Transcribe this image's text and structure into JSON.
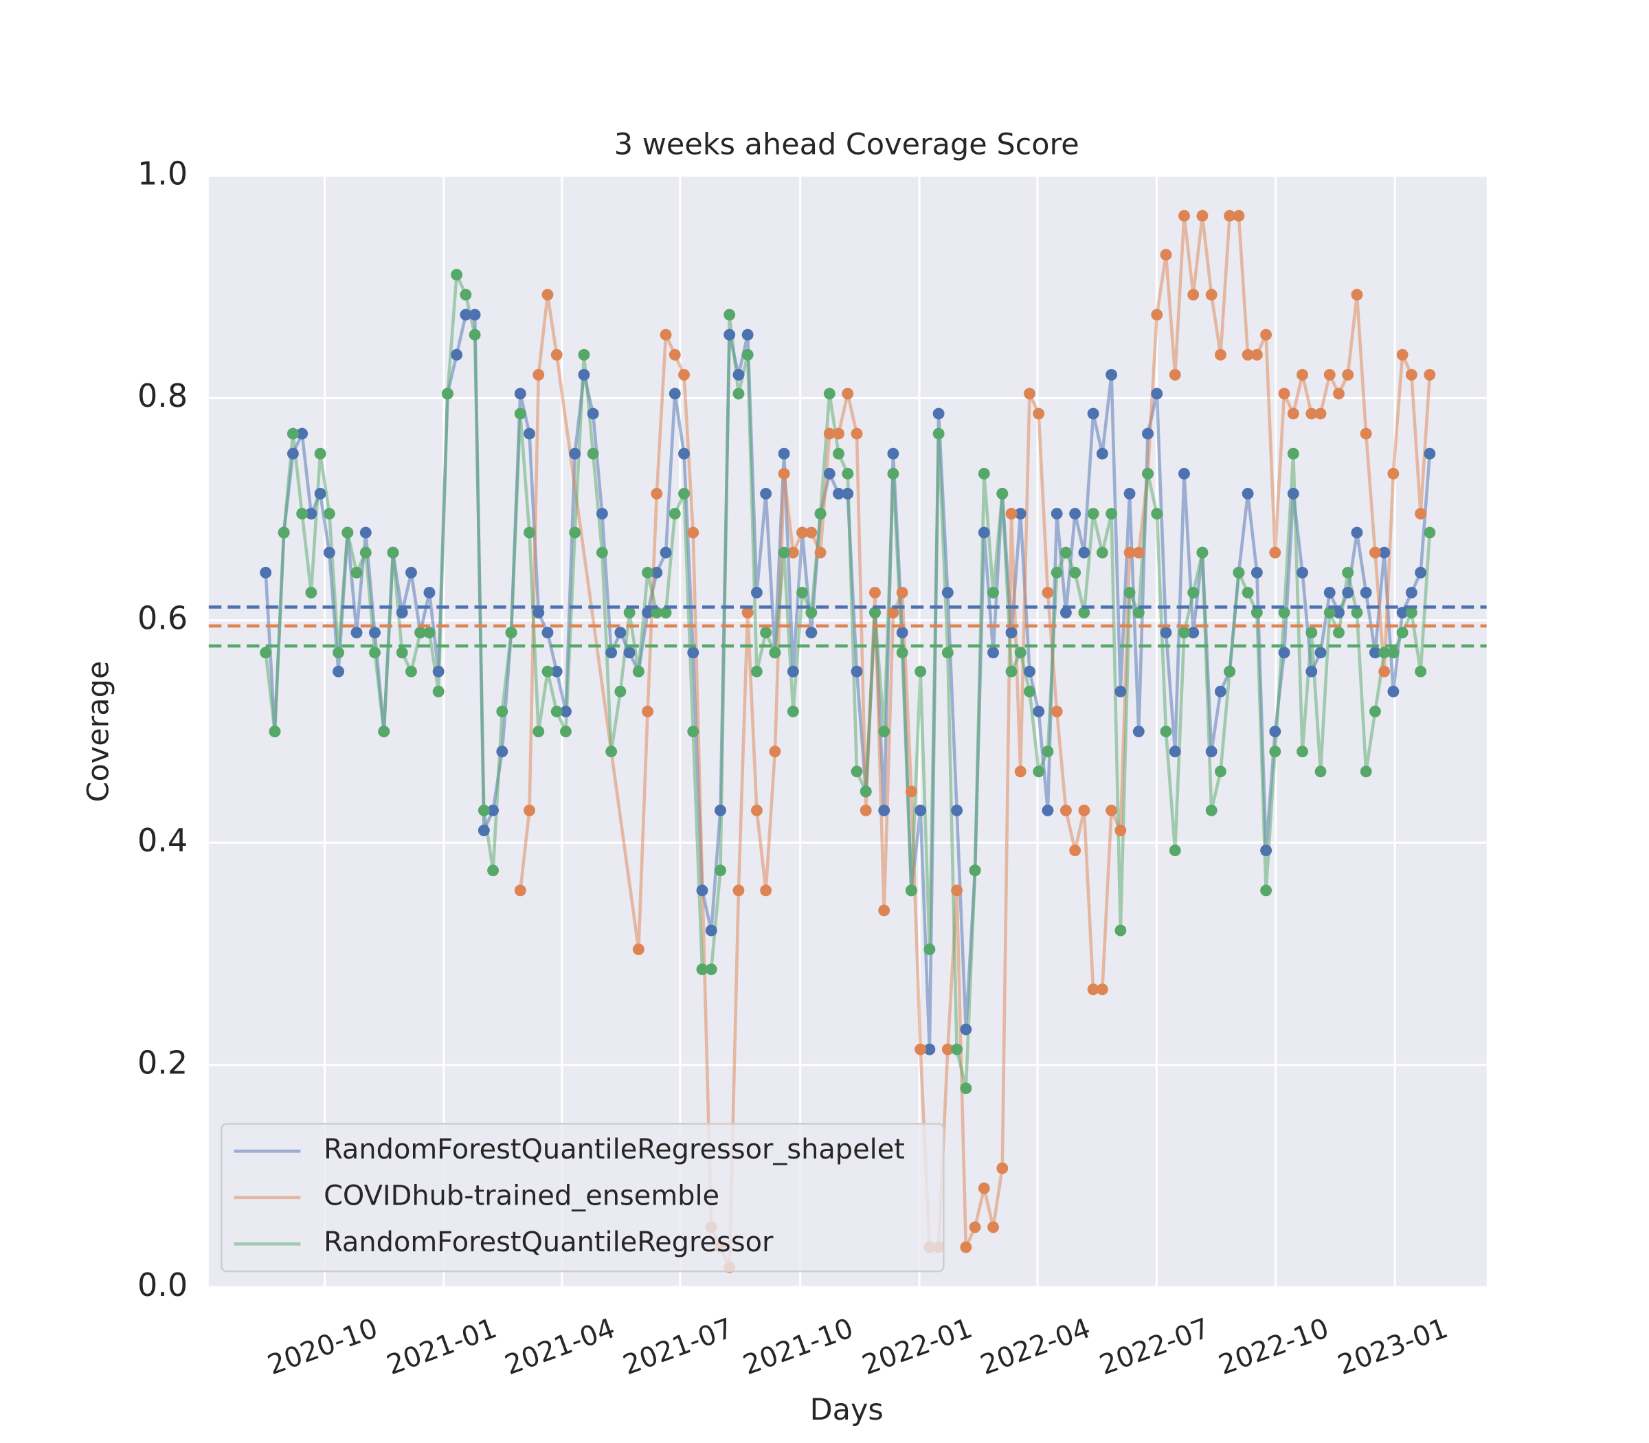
{
  "chart_data": {
    "type": "line",
    "title": "3 weeks ahead Coverage Score",
    "xlabel": "Days",
    "ylabel": "Coverage",
    "x": [
      0,
      1,
      2,
      3,
      4,
      5,
      6,
      7,
      8,
      9,
      10,
      11,
      12,
      13,
      14,
      15,
      16,
      17,
      18,
      19,
      20,
      21,
      22,
      23,
      24,
      25,
      26,
      27,
      28,
      29,
      30,
      31,
      32,
      33,
      34,
      35,
      36,
      37,
      38,
      39,
      40,
      41,
      42,
      43,
      44,
      45,
      46,
      47,
      48,
      49,
      50,
      51,
      52,
      53,
      54,
      55,
      56,
      57,
      58,
      59,
      60,
      61,
      62,
      63,
      64,
      65,
      66,
      67,
      68,
      69,
      70,
      71,
      72,
      73,
      74,
      75,
      76,
      77,
      78,
      79,
      80,
      81,
      82,
      83,
      84,
      85,
      86,
      87,
      88,
      89,
      90,
      91,
      92,
      93,
      94,
      95,
      96,
      97,
      98,
      99,
      100,
      101,
      102,
      103,
      104,
      105,
      106,
      107,
      108,
      109,
      110,
      111,
      112,
      113,
      114,
      115,
      116,
      117,
      118,
      119,
      120,
      121,
      122,
      123,
      124,
      125,
      126,
      127,
      128
    ],
    "xlim": [
      -6.26,
      134.26
    ],
    "xticks": [
      {
        "value": 6.49,
        "label": "2020-10"
      },
      {
        "value": 19.59,
        "label": "2021-01"
      },
      {
        "value": 32.58,
        "label": "2021-04"
      },
      {
        "value": 45.57,
        "label": "2021-07"
      },
      {
        "value": 58.78,
        "label": "2021-10"
      },
      {
        "value": 71.88,
        "label": "2022-01"
      },
      {
        "value": 84.87,
        "label": "2022-04"
      },
      {
        "value": 97.97,
        "label": "2022-07"
      },
      {
        "value": 111.07,
        "label": "2022-10"
      },
      {
        "value": 124.17,
        "label": "2023-01"
      }
    ],
    "ylim": [
      0,
      1
    ],
    "yticks": [
      {
        "value": 0,
        "label": "0.0"
      },
      0.2,
      0.4,
      0.6,
      0.8,
      {
        "value": 1,
        "label": "1.0"
      }
    ],
    "grid": true,
    "legend": "lower left",
    "series": [
      {
        "name": "RandomForestQuantileRegressor_shapelet",
        "color": "#4c72b0",
        "mean": 0.612,
        "values": [
          0.643,
          0.5,
          0.679,
          0.75,
          0.768,
          0.696,
          0.714,
          0.661,
          0.554,
          0.679,
          0.589,
          0.679,
          0.589,
          0.5,
          0.661,
          0.607,
          0.643,
          0.589,
          0.625,
          0.554,
          0.804,
          0.839,
          0.875,
          0.875,
          0.411,
          0.429,
          0.482,
          0.589,
          0.804,
          0.768,
          0.607,
          0.589,
          0.554,
          0.518,
          0.75,
          0.821,
          0.786,
          0.696,
          0.571,
          0.589,
          0.571,
          0.554,
          0.607,
          0.643,
          0.661,
          0.804,
          0.75,
          0.571,
          0.357,
          0.321,
          0.429,
          0.857,
          0.821,
          0.857,
          0.625,
          0.714,
          0.571,
          0.75,
          0.554,
          0.679,
          0.589,
          0.696,
          0.732,
          0.714,
          0.714,
          0.554,
          0.446,
          0.607,
          0.429,
          0.75,
          0.589,
          0.357,
          0.429,
          0.214,
          0.786,
          0.625,
          0.429,
          0.232,
          0.375,
          0.679,
          0.571,
          0.714,
          0.589,
          0.696,
          0.554,
          0.518,
          0.429,
          0.696,
          0.607,
          0.696,
          0.661,
          0.786,
          0.75,
          0.821,
          0.536,
          0.714,
          0.5,
          0.768,
          0.804,
          0.589,
          0.482,
          0.732,
          0.589,
          0.661,
          0.482,
          0.536,
          0.554,
          0.643,
          0.714,
          0.643,
          0.393,
          0.5,
          0.571,
          0.714,
          0.643,
          0.554,
          0.571,
          0.625,
          0.607,
          0.625,
          0.679,
          0.625,
          0.571,
          0.661,
          0.536,
          0.607,
          0.625,
          0.643,
          0.75
        ]
      },
      {
        "name": "COVIDhub-trained_ensemble",
        "color": "#dd8452",
        "mean": 0.595,
        "x": [
          28,
          29,
          30,
          31,
          32,
          41,
          42,
          43,
          44,
          45,
          46,
          47,
          49,
          50,
          51,
          52,
          53,
          54,
          55,
          56,
          57,
          58,
          59,
          60,
          61,
          62,
          63,
          64,
          65,
          66,
          67,
          68,
          69,
          70,
          71,
          72,
          73,
          74,
          75,
          76,
          77,
          78,
          79,
          80,
          81,
          82,
          83,
          84,
          85,
          86,
          87,
          88,
          89,
          90,
          91,
          92,
          93,
          94,
          95,
          96,
          97,
          98,
          99,
          100,
          101,
          102,
          103,
          104,
          105,
          106,
          107,
          108,
          109,
          110,
          111,
          112,
          113,
          114,
          115,
          116,
          117,
          118,
          119,
          120,
          121,
          122,
          123,
          124,
          125,
          126,
          127,
          128
        ],
        "values": [
          0.357,
          0.429,
          0.821,
          0.893,
          0.839,
          0.304,
          0.518,
          0.714,
          0.857,
          0.839,
          0.821,
          0.679,
          0.054,
          0.036,
          0.018,
          0.357,
          0.607,
          0.429,
          0.357,
          0.482,
          0.732,
          0.661,
          0.679,
          0.679,
          0.661,
          0.768,
          0.768,
          0.804,
          0.768,
          0.429,
          0.625,
          0.339,
          0.607,
          0.625,
          0.446,
          0.214,
          0.036,
          0.036,
          0.214,
          0.357,
          0.036,
          0.054,
          0.089,
          0.054,
          0.107,
          0.696,
          0.464,
          0.804,
          0.786,
          0.625,
          0.518,
          0.429,
          0.393,
          0.429,
          0.268,
          0.268,
          0.429,
          0.411,
          0.661,
          0.661,
          0.732,
          0.875,
          0.929,
          0.821,
          0.964,
          0.893,
          0.964,
          0.893,
          0.839,
          0.964,
          0.964,
          0.839,
          0.839,
          0.857,
          0.661,
          0.804,
          0.786,
          0.821,
          0.786,
          0.786,
          0.821,
          0.804,
          0.821,
          0.893,
          0.768,
          0.661,
          0.554,
          0.732,
          0.839,
          0.821,
          0.696,
          0.821
        ]
      },
      {
        "name": "RandomForestQuantileRegressor",
        "color": "#55a868",
        "mean": 0.577,
        "values": [
          0.571,
          0.5,
          0.679,
          0.768,
          0.696,
          0.625,
          0.75,
          0.696,
          0.571,
          0.679,
          0.643,
          0.661,
          0.571,
          0.5,
          0.661,
          0.571,
          0.554,
          0.589,
          0.589,
          0.536,
          0.804,
          0.911,
          0.893,
          0.857,
          0.429,
          0.375,
          0.518,
          0.589,
          0.786,
          0.679,
          0.5,
          0.554,
          0.518,
          0.5,
          0.679,
          0.839,
          0.75,
          0.661,
          0.482,
          0.536,
          0.607,
          0.554,
          0.643,
          0.607,
          0.607,
          0.696,
          0.714,
          0.5,
          0.286,
          0.286,
          0.375,
          0.875,
          0.804,
          0.839,
          0.554,
          0.589,
          0.571,
          0.661,
          0.518,
          0.625,
          0.607,
          0.696,
          0.804,
          0.75,
          0.732,
          0.464,
          0.446,
          0.607,
          0.5,
          0.732,
          0.571,
          0.357,
          0.554,
          0.304,
          0.768,
          0.571,
          0.214,
          0.179,
          0.375,
          0.732,
          0.625,
          0.714,
          0.554,
          0.571,
          0.536,
          0.464,
          0.482,
          0.643,
          0.661,
          0.643,
          0.607,
          0.696,
          0.661,
          0.696,
          0.321,
          0.625,
          0.607,
          0.732,
          0.696,
          0.5,
          0.393,
          0.589,
          0.625,
          0.661,
          0.429,
          0.464,
          0.554,
          0.643,
          0.625,
          0.607,
          0.357,
          0.482,
          0.607,
          0.75,
          0.482,
          0.589,
          0.464,
          0.607,
          0.589,
          0.643,
          0.607,
          0.464,
          0.518,
          0.571,
          0.571,
          0.589,
          0.607,
          0.554,
          0.679
        ]
      }
    ]
  }
}
